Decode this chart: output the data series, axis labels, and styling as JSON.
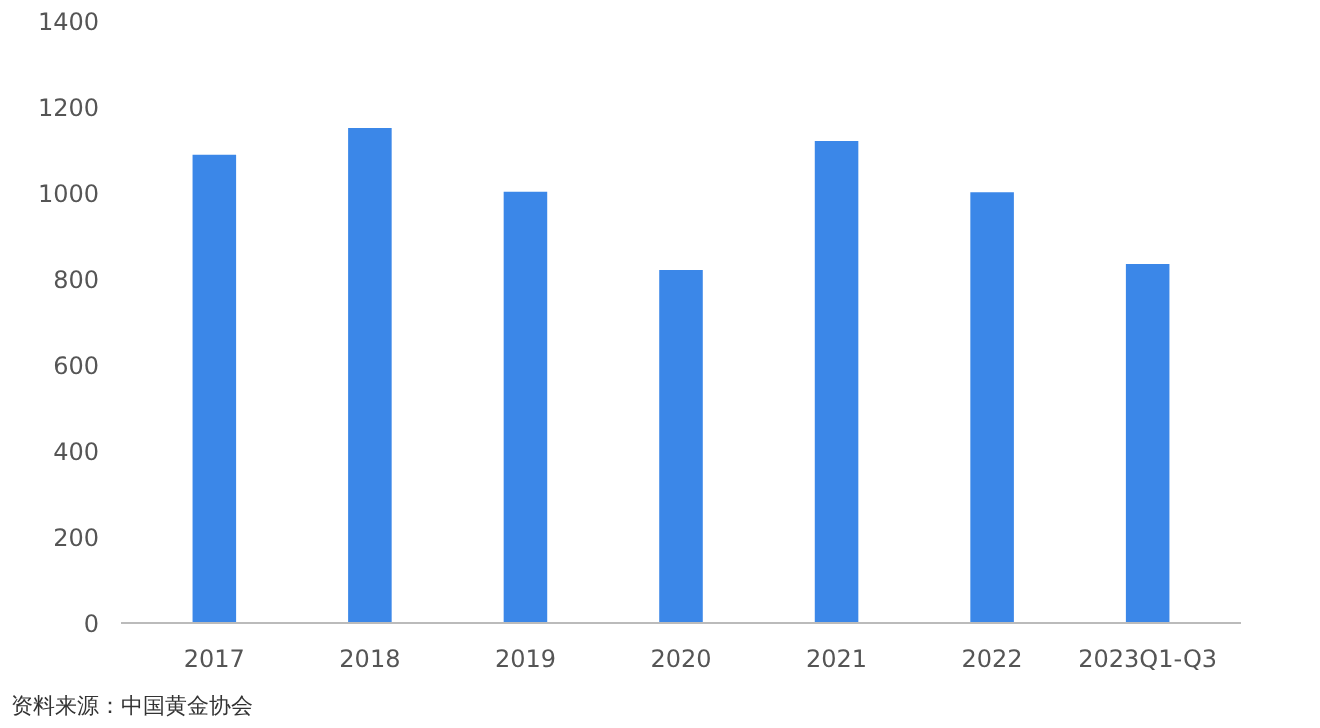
{
  "chart_data": {
    "type": "bar",
    "categories": [
      "2017",
      "2018",
      "2019",
      "2020",
      "2021",
      "2022",
      "2023Q1-Q3"
    ],
    "values": [
      1089,
      1151,
      1003,
      821,
      1121,
      1002,
      835
    ],
    "color": "#3b87e8",
    "ylim": [
      0,
      1400
    ],
    "yticks": [
      0,
      200,
      400,
      600,
      800,
      1000,
      1200,
      1400
    ],
    "grid": false,
    "annotations": [
      "资料来源：中国黄金协会"
    ]
  }
}
